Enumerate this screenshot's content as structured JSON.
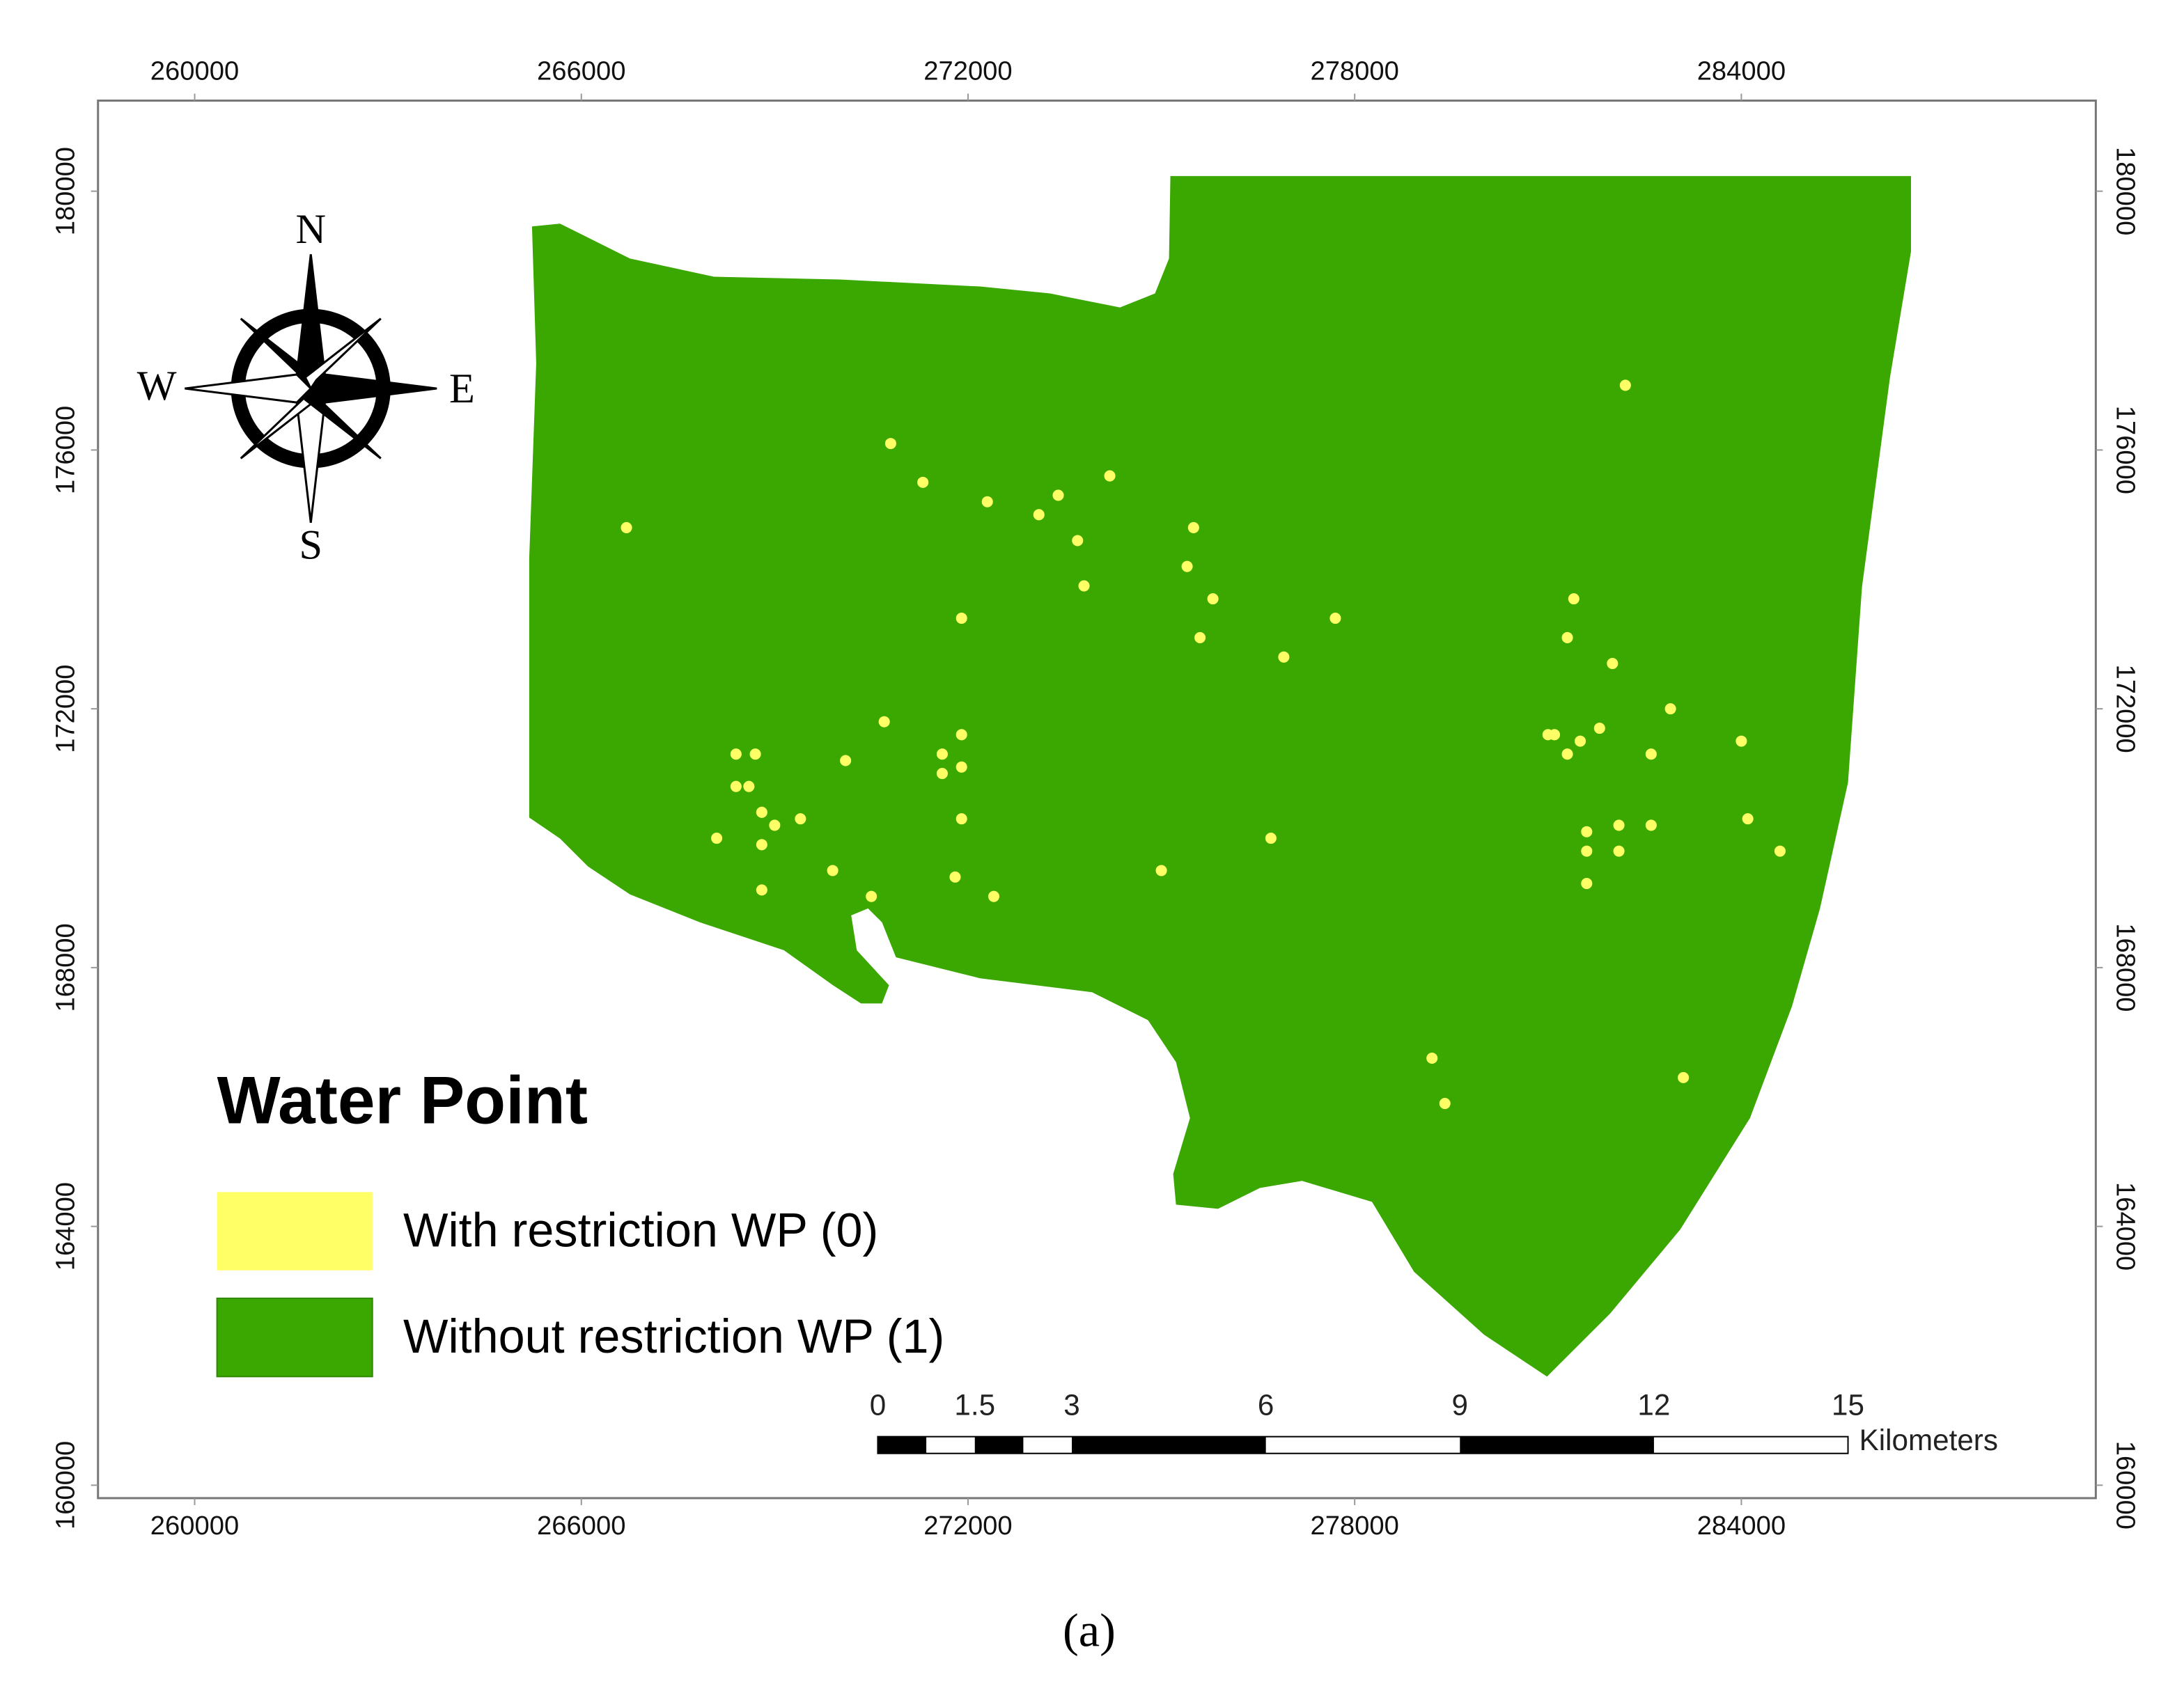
{
  "chart_data": {
    "type": "map",
    "xlim": [
      258500,
      289500
    ],
    "ylim": [
      159800,
      181400
    ],
    "xticks": [
      260000,
      266000,
      272000,
      278000,
      284000
    ],
    "yticks": [
      160000,
      164000,
      168000,
      172000,
      176000,
      180000
    ],
    "compass": {
      "north": "N",
      "south": "S",
      "east": "E",
      "west": "W"
    },
    "legend": {
      "title": "Water Point",
      "items": [
        {
          "label": "With restriction WP (0)",
          "color": "#ffff66"
        },
        {
          "label": "Without restriction WP (1)",
          "color": "#3aa800"
        }
      ]
    },
    "points": {
      "x": [
        266700,
        270800,
        271300,
        272300,
        273100,
        273400,
        274200,
        273700,
        273800,
        275500,
        275400,
        275800,
        275600,
        271900,
        276900,
        277700,
        282200,
        281400,
        281300,
        282000,
        282900,
        282600,
        281800,
        281500,
        281300,
        281000,
        281100,
        284000,
        284100,
        284600,
        282600,
        282100,
        281600,
        281600,
        282100,
        281600,
        270700,
        271900,
        271600,
        271900,
        271600,
        271900,
        271800,
        272400,
        270100,
        269900,
        270500,
        268800,
        268100,
        268800,
        269000,
        269400,
        268800,
        268400,
        268600,
        268400,
        268700,
        276700,
        275000,
        279200,
        279400,
        283100
      ],
      "y": [
        174800,
        176100,
        175500,
        175200,
        175000,
        175300,
        175600,
        174600,
        173900,
        174800,
        174200,
        173700,
        173100,
        173400,
        172800,
        173400,
        177000,
        173700,
        173100,
        172700,
        172000,
        171300,
        171700,
        171500,
        171300,
        171600,
        171600,
        171500,
        170300,
        169800,
        170200,
        170200,
        170100,
        169800,
        169800,
        169300,
        171800,
        171600,
        171300,
        171100,
        171000,
        170300,
        169400,
        169100,
        171200,
        169500,
        169100,
        169200,
        170000,
        169900,
        170200,
        170300,
        170400,
        170800,
        170800,
        171300,
        171300,
        170000,
        169500,
        166600,
        165900,
        166300
      ]
    },
    "scale_bar": {
      "ticks": [
        0,
        1.5,
        3,
        6,
        9,
        12,
        15
      ],
      "unit": "Kilometers"
    }
  },
  "caption": "(a)"
}
